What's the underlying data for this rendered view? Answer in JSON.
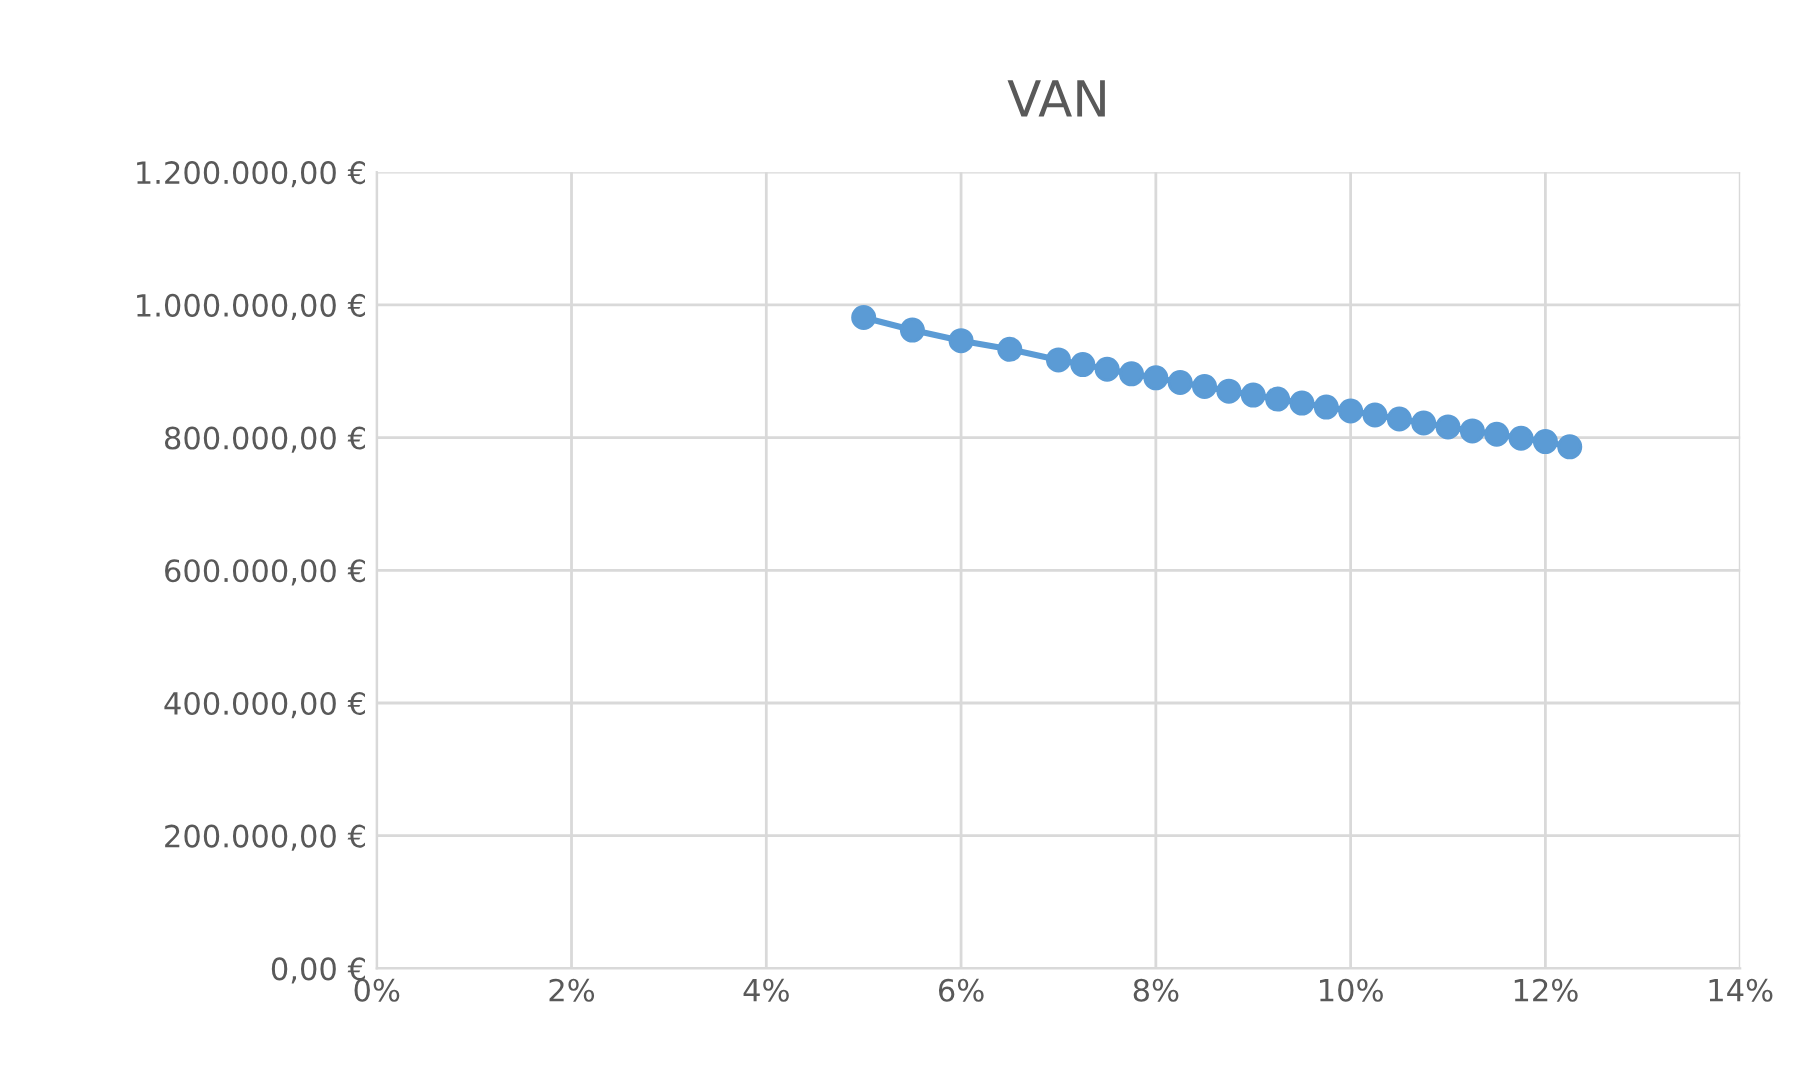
{
  "chart_data": {
    "type": "line",
    "title": "VAN",
    "x": [
      5,
      5.5,
      6,
      6.5,
      7,
      7.25,
      7.5,
      7.75,
      8,
      8.25,
      8.5,
      8.75,
      9,
      9.25,
      9.5,
      9.75,
      10,
      10.25,
      10.5,
      10.75,
      11,
      11.25,
      11.5,
      11.75,
      12,
      12.25
    ],
    "series": [
      {
        "color": "#5b9bd5",
        "values": [
          981000,
          962000,
          946000,
          933000,
          917000,
          910000,
          903000,
          896000,
          890000,
          883000,
          877000,
          870000,
          864000,
          858000,
          852000,
          846000,
          840000,
          834000,
          828000,
          822000,
          816000,
          810000,
          805000,
          799000,
          794000,
          786000
        ]
      }
    ],
    "xlim": [
      0,
      14
    ],
    "xticks": [
      {
        "value": 0,
        "label": "0%"
      },
      {
        "value": 2,
        "label": "2%"
      },
      {
        "value": 4,
        "label": "4%"
      },
      {
        "value": 6,
        "label": "6%"
      },
      {
        "value": 8,
        "label": "8%"
      },
      {
        "value": 10,
        "label": "10%"
      },
      {
        "value": 12,
        "label": "12%"
      },
      {
        "value": 14,
        "label": "14%"
      }
    ],
    "ylim": [
      0,
      1200000
    ],
    "yticks": [
      {
        "value": 0,
        "label": "0,00 €"
      },
      {
        "value": 200000,
        "label": "200.000,00 €"
      },
      {
        "value": 400000,
        "label": "400.000,00 €"
      },
      {
        "value": 600000,
        "label": "600.000,00 €"
      },
      {
        "value": 800000,
        "label": "800.000,00 €"
      },
      {
        "value": 1000000,
        "label": "1.000.000,00 €"
      },
      {
        "value": 1200000,
        "label": "1.200.000,00 €"
      }
    ],
    "grid": true,
    "marker": "circle",
    "line_style": "solid",
    "legend": false
  }
}
